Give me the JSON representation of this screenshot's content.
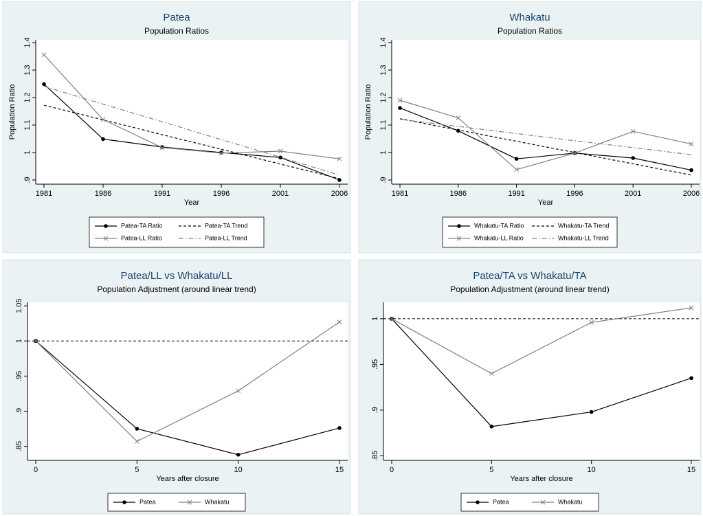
{
  "chart_data": [
    {
      "type": "line",
      "title": "Patea",
      "subtitle": "Population Ratios",
      "xlabel": "Year",
      "ylabel": "Population Ratio",
      "x": [
        1981,
        1986,
        1991,
        1996,
        2001,
        2006
      ],
      "series": [
        {
          "name": "Patea-TA Ratio",
          "color": "#000000",
          "marker": "circle",
          "dash": "solid",
          "values": [
            1.249,
            1.049,
            1.02,
            1.0,
            0.982,
            0.9
          ]
        },
        {
          "name": "Patea-TA Trend",
          "color": "#000000",
          "marker": "none",
          "dash": "dash",
          "values": [
            1.172,
            1.119,
            1.065,
            1.012,
            0.958,
            0.905
          ]
        },
        {
          "name": "Patea-LL Ratio",
          "color": "#808080",
          "marker": "x",
          "dash": "solid",
          "values": [
            1.356,
            1.12,
            1.018,
            0.998,
            1.005,
            0.977
          ]
        },
        {
          "name": "Patea-LL Trend",
          "color": "#808080",
          "marker": "none",
          "dash": "dashdot",
          "values": [
            1.241,
            1.176,
            1.112,
            1.047,
            0.983,
            0.918
          ]
        }
      ],
      "xlim": [
        1981,
        2006
      ],
      "xticks": [
        1981,
        1986,
        1991,
        1996,
        2001,
        2006
      ],
      "ylim": [
        0.885,
        1.41
      ],
      "yticks": [
        {
          "value": 0.9,
          "label": ".9"
        },
        1,
        1.1,
        1.2,
        1.3,
        1.4
      ]
    },
    {
      "type": "line",
      "title": "Whakatu",
      "subtitle": "Population Ratios",
      "xlabel": "Year",
      "ylabel": "Population Ratio",
      "x": [
        1981,
        1986,
        1991,
        1996,
        2001,
        2006
      ],
      "series": [
        {
          "name": "Whakatu-TA Ratio",
          "color": "#000000",
          "marker": "circle",
          "dash": "solid",
          "values": [
            1.162,
            1.079,
            0.977,
            0.998,
            0.98,
            0.936
          ]
        },
        {
          "name": "Whakatu-TA Trend",
          "color": "#000000",
          "marker": "none",
          "dash": "dash",
          "values": [
            1.123,
            1.082,
            1.041,
            1.0,
            0.959,
            0.918
          ]
        },
        {
          "name": "Whakatu-LL Ratio",
          "color": "#808080",
          "marker": "x",
          "dash": "solid",
          "values": [
            1.19,
            1.126,
            0.938,
            0.998,
            1.077,
            1.031
          ]
        },
        {
          "name": "Whakatu-LL Trend",
          "color": "#808080",
          "marker": "none",
          "dash": "dashdot",
          "values": [
            1.121,
            1.095,
            1.069,
            1.043,
            1.018,
            0.992
          ]
        }
      ],
      "xlim": [
        1981,
        2006
      ],
      "xticks": [
        1981,
        1986,
        1991,
        1996,
        2001,
        2006
      ],
      "ylim": [
        0.885,
        1.41
      ],
      "yticks": [
        {
          "value": 0.9,
          "label": ".9"
        },
        1,
        1.1,
        1.2,
        1.3,
        1.4
      ]
    },
    {
      "type": "line",
      "title": "Patea/LL vs Whakatu/LL",
      "subtitle": "Population Adjustment (around linear trend)",
      "xlabel": "Years after closure",
      "x": [
        0,
        5,
        10,
        15
      ],
      "series": [
        {
          "name": "Patea",
          "color": "#000000",
          "marker": "circle",
          "dash": "solid",
          "values": [
            1,
            0.875,
            0.838,
            0.876
          ]
        },
        {
          "name": "Whakatu",
          "color": "#808080",
          "marker": "x",
          "dash": "solid",
          "values": [
            1,
            0.857,
            0.929,
            1.027
          ]
        }
      ],
      "reference_line": 1,
      "xlim": [
        0,
        15
      ],
      "xticks": [
        0,
        5,
        10,
        15
      ],
      "ylim": [
        0.83,
        1.055
      ],
      "yticks": [
        {
          "value": 0.85,
          "label": ".85"
        },
        {
          "value": 0.9,
          "label": ".9"
        },
        {
          "value": 0.95,
          "label": ".95"
        },
        1,
        1.05
      ]
    },
    {
      "type": "line",
      "title": "Patea/TA vs Whakatu/TA",
      "subtitle": "Population Adjustment (around linear trend)",
      "xlabel": "Years after closure",
      "x": [
        0,
        5,
        10,
        15
      ],
      "series": [
        {
          "name": "Patea",
          "color": "#000000",
          "marker": "circle",
          "dash": "solid",
          "values": [
            1,
            0.882,
            0.898,
            0.935
          ]
        },
        {
          "name": "Whakatu",
          "color": "#808080",
          "marker": "x",
          "dash": "solid",
          "values": [
            1,
            0.94,
            0.996,
            1.012
          ]
        }
      ],
      "reference_line": 1,
      "xlim": [
        0,
        15
      ],
      "xticks": [
        0,
        5,
        10,
        15
      ],
      "ylim": [
        0.845,
        1.018
      ],
      "yticks": [
        {
          "value": 0.85,
          "label": ".85"
        },
        {
          "value": 0.9,
          "label": ".9"
        },
        {
          "value": 0.95,
          "label": ".95"
        },
        1
      ]
    }
  ]
}
